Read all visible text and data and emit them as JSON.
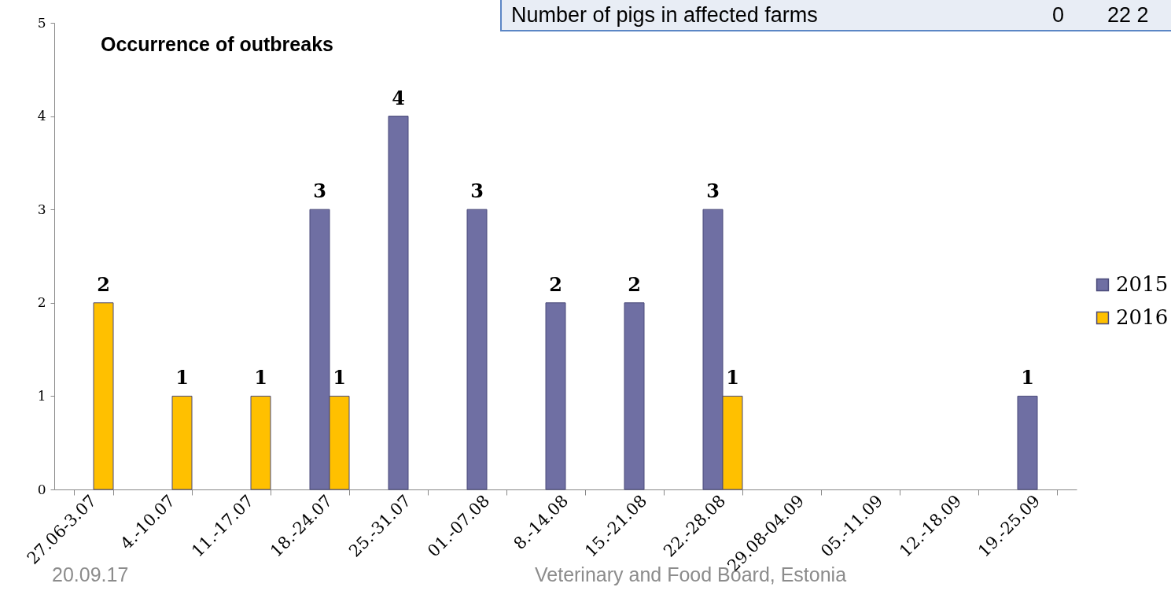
{
  "chart_data": {
    "type": "bar",
    "title": "Occurrence of outbreaks",
    "categories": [
      "27.06-3.07",
      "4.-10.07",
      "11.-17.07",
      "18.-24.07",
      "25.-31.07",
      "01.-07.08",
      "8.-14.08",
      "15.-21.08",
      "22.-28.08",
      "29.08-04.09",
      "05.-11.09",
      "12.-18.09",
      "19.-25.09"
    ],
    "series": [
      {
        "name": "2015",
        "color": "#6f6fa3",
        "values": [
          null,
          null,
          null,
          3,
          4,
          3,
          2,
          2,
          3,
          null,
          null,
          null,
          1
        ]
      },
      {
        "name": "2016",
        "color": "#ffc000",
        "values": [
          2,
          1,
          1,
          1,
          null,
          null,
          null,
          null,
          1,
          null,
          null,
          null,
          null
        ]
      }
    ],
    "ylim": [
      0,
      5
    ],
    "yticks": [
      0,
      1,
      2,
      3,
      4,
      5
    ],
    "data_labels": true,
    "legend": "right",
    "grid": false,
    "annotations": [
      "Number of pigs in affected farms",
      "0",
      "22 2",
      "20.09.17",
      "Veterinary and Food Board, Estonia"
    ]
  }
}
